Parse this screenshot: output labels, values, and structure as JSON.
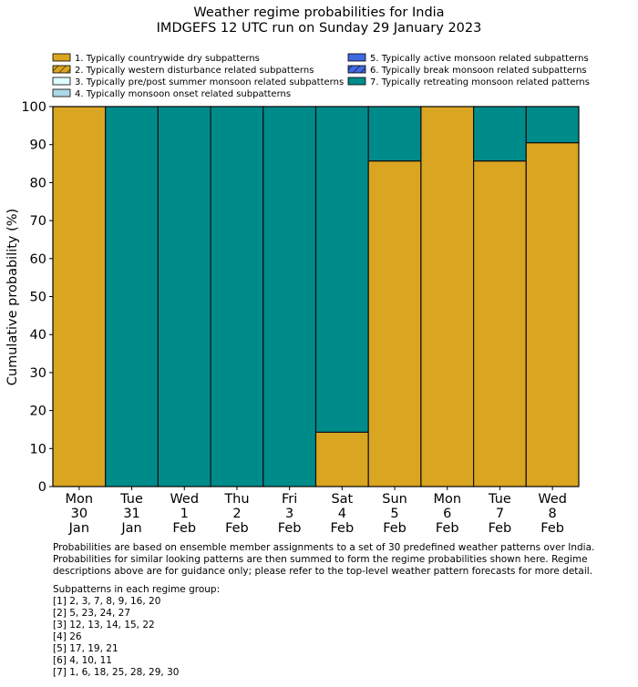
{
  "chart_data": {
    "type": "bar",
    "stacked": true,
    "title": "Weather regime probabilities for India",
    "subtitle": "IMDGEFS 12 UTC run on Sunday 29 January 2023",
    "ylabel": "Cumulative probability (%)",
    "xlabel": "",
    "ylim": [
      0,
      100
    ],
    "yticks": [
      0,
      10,
      20,
      30,
      40,
      50,
      60,
      70,
      80,
      90,
      100
    ],
    "grid": false,
    "legend_placement": "top",
    "categories": [
      [
        "Mon",
        "30",
        "Jan"
      ],
      [
        "Tue",
        "31",
        "Jan"
      ],
      [
        "Wed",
        "1",
        "Feb"
      ],
      [
        "Thu",
        "2",
        "Feb"
      ],
      [
        "Fri",
        "3",
        "Feb"
      ],
      [
        "Sat",
        "4",
        "Feb"
      ],
      [
        "Sun",
        "5",
        "Feb"
      ],
      [
        "Mon",
        "6",
        "Feb"
      ],
      [
        "Tue",
        "7",
        "Feb"
      ],
      [
        "Wed",
        "8",
        "Feb"
      ]
    ],
    "legend": [
      {
        "label": "1. Typically countrywide dry subpatterns",
        "color": "#daa520",
        "hatch": false
      },
      {
        "label": "2. Typically western disturbance related subpatterns",
        "color": "#daa520",
        "hatch": true
      },
      {
        "label": "3. Typically pre/post summer monsoon related subpatterns",
        "color": "#e0ffff",
        "hatch": false
      },
      {
        "label": "4. Typically monsoon onset related subpatterns",
        "color": "#add8e6",
        "hatch": false
      },
      {
        "label": "5. Typically active monsoon related subpatterns",
        "color": "#4169e1",
        "hatch": false
      },
      {
        "label": "6. Typically break monsoon related subpatterns",
        "color": "#4169e1",
        "hatch": true
      },
      {
        "label": "7. Typically retreating monsoon related patterns",
        "color": "#008b8b",
        "hatch": false
      }
    ],
    "series": [
      {
        "name": "1. Typically countrywide dry subpatterns",
        "color": "#daa520",
        "values": [
          100,
          0,
          0,
          0,
          0,
          14.3,
          85.7,
          100,
          85.7,
          90.5
        ]
      },
      {
        "name": "7. Typically retreating monsoon related patterns",
        "color": "#008b8b",
        "values": [
          0,
          100,
          100,
          100,
          100,
          85.7,
          14.3,
          0,
          14.3,
          9.5
        ]
      }
    ]
  },
  "footnote": {
    "para1": "Probabilities are based on ensemble member assignments to a set of 30 predefined weather patterns over India.\nProbabilities for similar looking patterns are then summed to form the regime probabilities shown here. Regime\ndescriptions above are for guidance only; please refer to the top-level weather pattern forecasts for more detail.",
    "heading": "Subpatterns in each regime group:",
    "groups": [
      "[1] 2, 3, 7, 8, 9, 16, 20",
      "[2] 5, 23, 24, 27",
      "[3] 12, 13, 14, 15, 22",
      "[4] 26",
      "[5] 17, 19, 21",
      "[6] 4, 10, 11",
      "[7] 1, 6, 18, 25, 28, 29, 30"
    ]
  }
}
